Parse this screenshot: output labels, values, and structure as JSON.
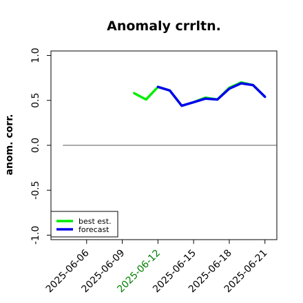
{
  "chart_data": {
    "type": "line",
    "title": "Anomaly crrltn.",
    "ylabel": "anom. corr.",
    "ylim": [
      -1.05,
      1.05
    ],
    "yticks": [
      -1.0,
      -0.5,
      0.0,
      0.5,
      1.0
    ],
    "ytick_labels": [
      "-1.0",
      "-0.5",
      "0.0",
      "0.5",
      "1.0"
    ],
    "xlim": [
      "2025-06-03",
      "2025-06-22"
    ],
    "xtick_dates": [
      "2025-06-06",
      "2025-06-09",
      "2025-06-12",
      "2025-06-15",
      "2025-06-18",
      "2025-06-21"
    ],
    "xtick_colors": [
      "#000000",
      "#000000",
      "#008000",
      "#000000",
      "#000000",
      "#000000"
    ],
    "reference_line_y": 0.0,
    "reference_line_range": [
      "2025-06-04",
      "2025-06-22"
    ],
    "legend_position": "bottom-left",
    "series": [
      {
        "name": "best est.",
        "color": "#00ee00",
        "x": [
          "2025-06-10",
          "2025-06-11",
          "2025-06-12",
          "2025-06-13",
          "2025-06-14",
          "2025-06-15",
          "2025-06-16",
          "2025-06-17",
          "2025-06-18",
          "2025-06-19",
          "2025-06-20",
          "2025-06-21"
        ],
        "values": [
          0.58,
          0.51,
          0.65,
          0.61,
          0.44,
          0.48,
          0.53,
          0.51,
          0.64,
          0.7,
          0.67,
          0.54
        ]
      },
      {
        "name": "forecast",
        "color": "#0000ee",
        "x": [
          "2025-06-12",
          "2025-06-13",
          "2025-06-14",
          "2025-06-15",
          "2025-06-16",
          "2025-06-17",
          "2025-06-18",
          "2025-06-19",
          "2025-06-20",
          "2025-06-21"
        ],
        "values": [
          0.65,
          0.61,
          0.44,
          0.48,
          0.52,
          0.51,
          0.63,
          0.69,
          0.67,
          0.54
        ]
      }
    ]
  }
}
